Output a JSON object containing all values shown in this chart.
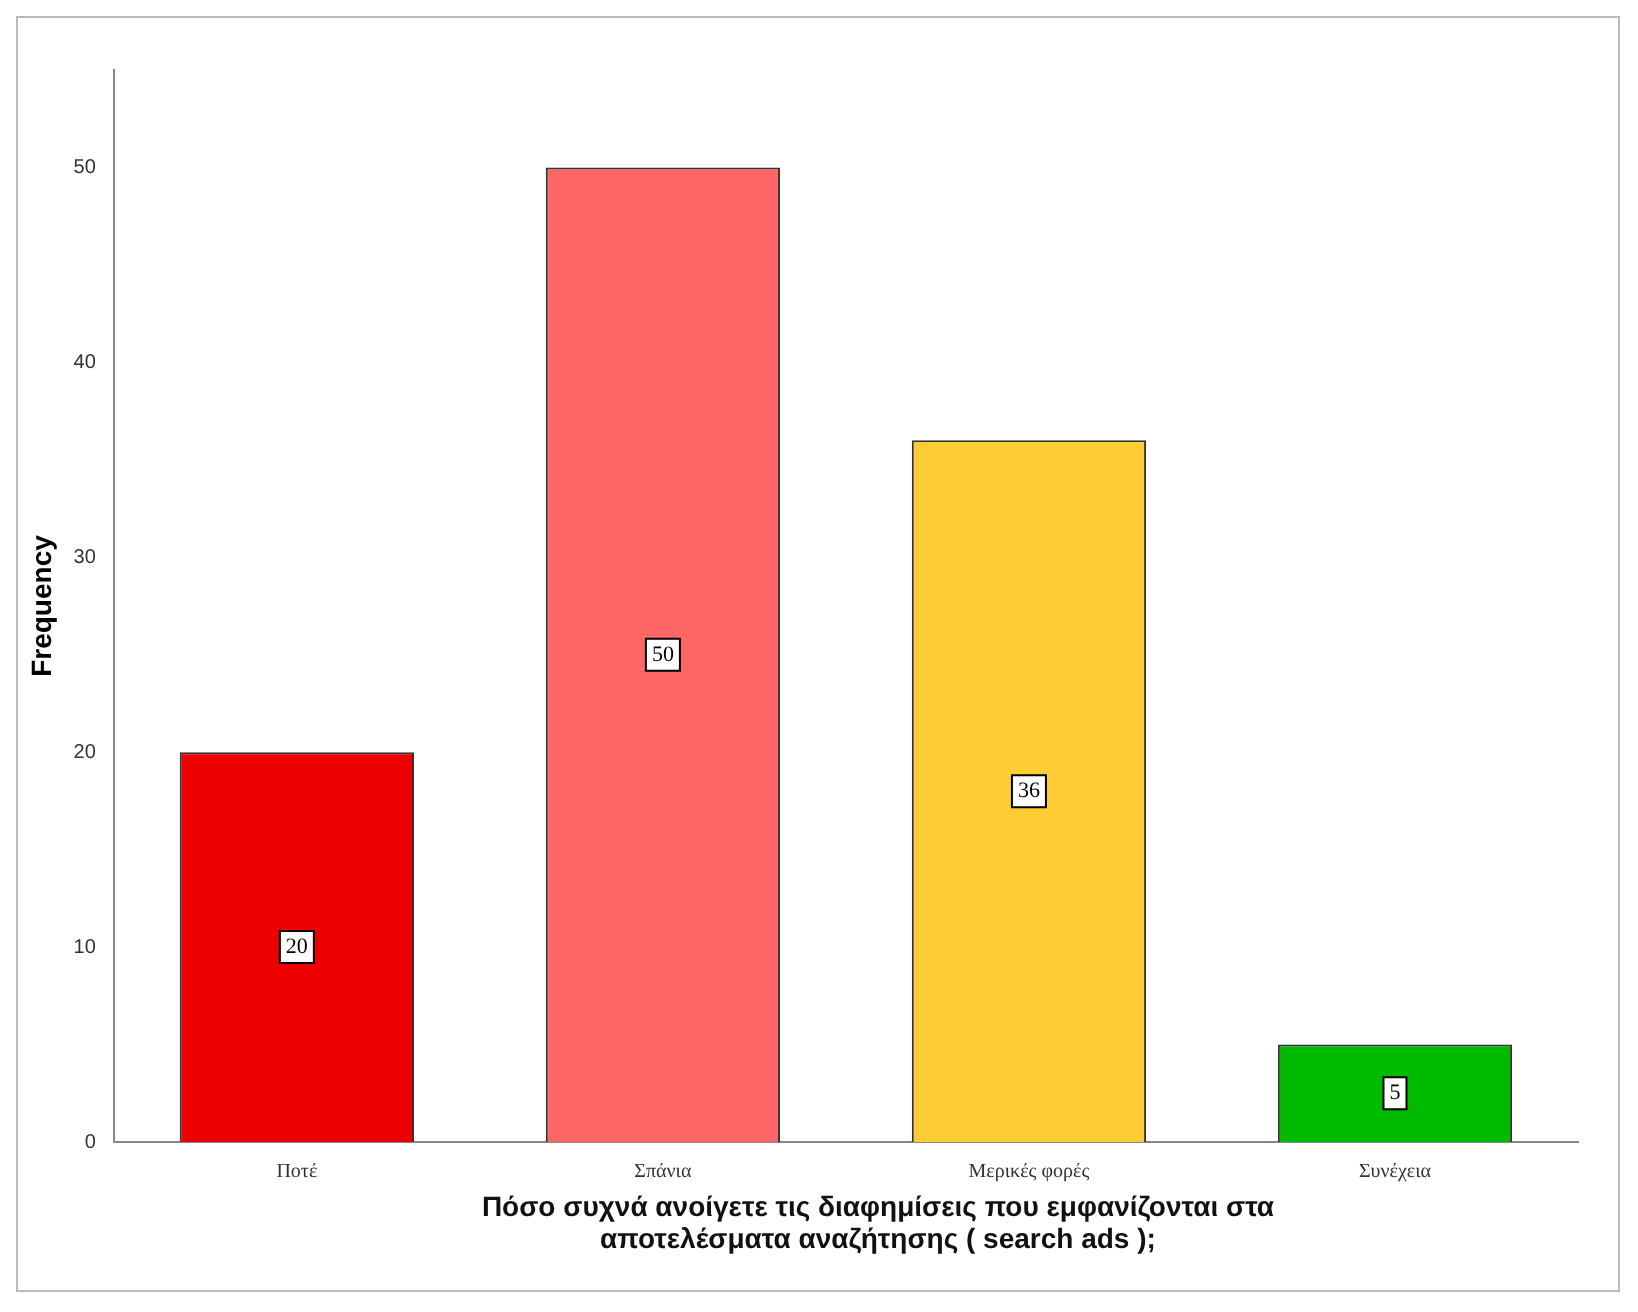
{
  "chart_data": {
    "type": "bar",
    "xlabel": "Πόσο συχνά ανοίγετε τις διαφημίσεις που εμφανίζονται στα αποτελέσματα αναζήτησης ( search ads );",
    "ylabel": "Frequency",
    "categories": [
      "Ποτέ",
      "Σπάνια",
      "Μερικές φορές",
      "Συνέχεια"
    ],
    "values": [
      20,
      50,
      36,
      5
    ],
    "colors": [
      "#ee0000",
      "#ff6666",
      "#ffcc33",
      "#00bb00"
    ],
    "ylim": [
      0,
      55
    ],
    "yticks": [
      0,
      10,
      20,
      30,
      40,
      50
    ],
    "grid": false,
    "legend": false,
    "data_labels": true
  }
}
